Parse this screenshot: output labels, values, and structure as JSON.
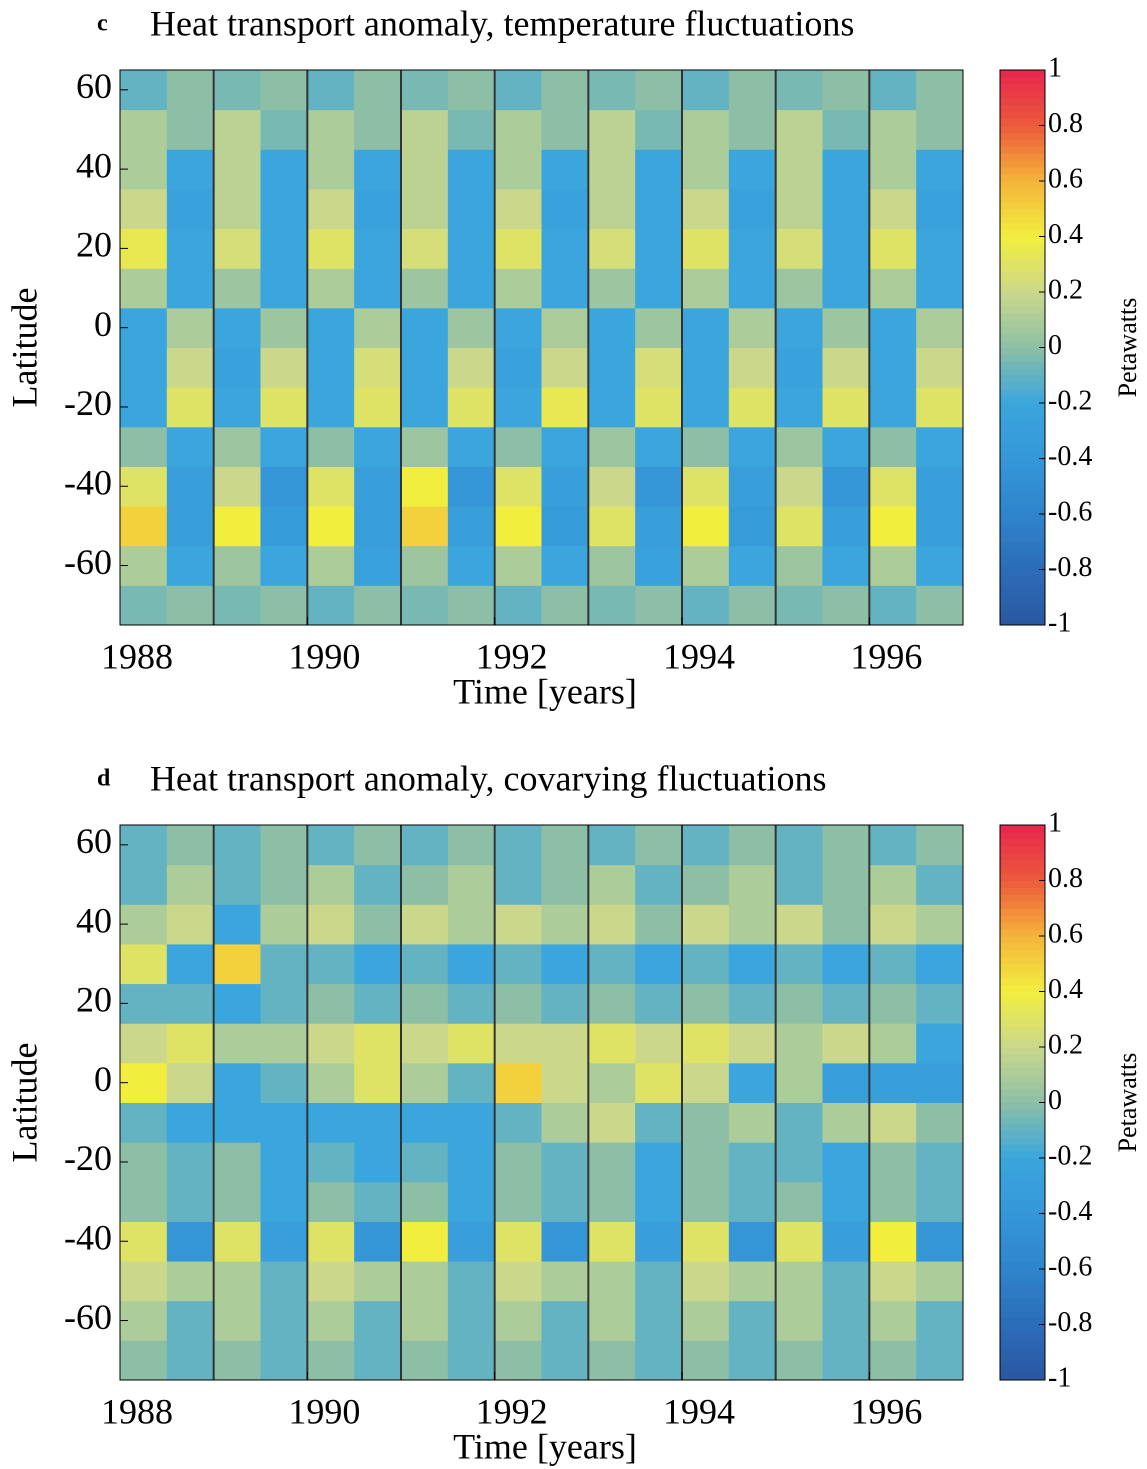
{
  "chart_data": [
    {
      "type": "heatmap",
      "panel_label": "c",
      "title": "Heat transport anomaly, temperature fluctuations",
      "xlabel": "Time [years]",
      "ylabel": "Latitude",
      "colorbar_label": "Petawatts",
      "xlim": [
        1988,
        1997
      ],
      "ylim": [
        -75,
        65
      ],
      "xticks": [
        1988,
        1990,
        1992,
        1994,
        1996
      ],
      "yticks": [
        -60,
        -40,
        -20,
        0,
        20,
        40,
        60
      ],
      "vlines": [
        1989,
        1990,
        1991,
        1992,
        1993,
        1994,
        1995,
        1996
      ],
      "clim": [
        -1,
        1
      ],
      "cticks": [
        -1,
        -0.8,
        -0.6,
        -0.4,
        -0.2,
        0,
        0.2,
        0.4,
        0.6,
        0.8,
        1
      ],
      "colormap": [
        "#2b57a0",
        "#2c6cb8",
        "#2f84cc",
        "#3597d8",
        "#3aa6dd",
        "#8cbfa6",
        "#cbd88c",
        "#f2ee3e",
        "#f4b43a",
        "#ec5a3c",
        "#e8264e"
      ],
      "xbins": [
        1988,
        1988.5,
        1989,
        1989.5,
        1990,
        1990.5,
        1991,
        1991.5,
        1992,
        1992.5,
        1993,
        1993.5,
        1994,
        1994.5,
        1995,
        1995.5,
        1996,
        1996.5,
        1997
      ],
      "ybins": [
        -75,
        -65,
        -55,
        -45,
        -35,
        -25,
        -15,
        -5,
        5,
        15,
        25,
        35,
        45,
        55,
        65
      ],
      "z": [
        [
          -0.05,
          0,
          -0.05,
          0,
          -0.1,
          0,
          -0.05,
          0,
          -0.1,
          0,
          -0.05,
          0,
          -0.1,
          0,
          -0.05,
          0,
          -0.1,
          0
        ],
        [
          0.1,
          -0.2,
          0.05,
          -0.2,
          0.1,
          -0.25,
          0.05,
          -0.2,
          0.1,
          -0.2,
          0.05,
          -0.25,
          0.1,
          -0.2,
          0.05,
          -0.2,
          0.1,
          -0.2
        ],
        [
          0.5,
          -0.3,
          0.4,
          -0.35,
          0.4,
          -0.3,
          0.5,
          -0.3,
          0.4,
          -0.35,
          0.3,
          -0.3,
          0.4,
          -0.35,
          0.3,
          -0.3,
          0.4,
          -0.3
        ],
        [
          0.3,
          -0.3,
          0.2,
          -0.4,
          0.3,
          -0.3,
          0.4,
          -0.4,
          0.3,
          -0.3,
          0.2,
          -0.4,
          0.3,
          -0.3,
          0.2,
          -0.4,
          0.3,
          -0.3
        ],
        [
          0,
          -0.2,
          0.05,
          -0.2,
          0,
          -0.2,
          0.05,
          -0.2,
          0,
          -0.2,
          0.05,
          -0.2,
          0,
          -0.2,
          0.05,
          -0.2,
          0,
          -0.2
        ],
        [
          -0.2,
          0.3,
          -0.2,
          0.3,
          -0.2,
          0.3,
          -0.2,
          0.3,
          -0.2,
          0.35,
          -0.2,
          0.3,
          -0.2,
          0.3,
          -0.2,
          0.3,
          -0.2,
          0.3
        ],
        [
          -0.2,
          0.2,
          -0.25,
          0.2,
          -0.2,
          0.25,
          -0.2,
          0.2,
          -0.25,
          0.2,
          -0.2,
          0.25,
          -0.2,
          0.2,
          -0.25,
          0.2,
          -0.2,
          0.2
        ],
        [
          -0.2,
          0.1,
          -0.2,
          0.05,
          -0.2,
          0.1,
          -0.2,
          0.05,
          -0.2,
          0.1,
          -0.2,
          0.05,
          -0.2,
          0.1,
          -0.2,
          0.05,
          -0.2,
          0.1
        ],
        [
          0.1,
          -0.2,
          0.05,
          -0.2,
          0.1,
          -0.2,
          0.05,
          -0.2,
          0.1,
          -0.2,
          0.05,
          -0.2,
          0.1,
          -0.2,
          0.05,
          -0.2,
          0.1,
          -0.2
        ],
        [
          0.35,
          -0.2,
          0.25,
          -0.2,
          0.3,
          -0.2,
          0.25,
          -0.2,
          0.3,
          -0.2,
          0.25,
          -0.2,
          0.3,
          -0.2,
          0.25,
          -0.2,
          0.3,
          -0.2
        ],
        [
          0.2,
          -0.25,
          0.15,
          -0.2,
          0.2,
          -0.25,
          0.15,
          -0.2,
          0.2,
          -0.25,
          0.15,
          -0.2,
          0.2,
          -0.25,
          0.15,
          -0.2,
          0.2,
          -0.25
        ],
        [
          0.1,
          -0.2,
          0.15,
          -0.2,
          0.1,
          -0.2,
          0.15,
          -0.2,
          0.1,
          -0.2,
          0.15,
          -0.2,
          0.1,
          -0.2,
          0.15,
          -0.2,
          0.1,
          -0.2
        ],
        [
          0.1,
          0,
          0.15,
          -0.05,
          0.1,
          0,
          0.15,
          -0.05,
          0.1,
          0,
          0.15,
          -0.05,
          0.1,
          0,
          0.15,
          -0.05,
          0.1,
          0
        ],
        [
          -0.1,
          0,
          -0.05,
          0,
          -0.1,
          0,
          -0.05,
          0,
          -0.1,
          0,
          -0.05,
          0,
          -0.1,
          0,
          -0.05,
          0,
          -0.1,
          0
        ]
      ]
    },
    {
      "type": "heatmap",
      "panel_label": "d",
      "title": "Heat transport anomaly, covarying fluctuations",
      "xlabel": "Time [years]",
      "ylabel": "Latitude",
      "colorbar_label": "Petawatts",
      "xlim": [
        1988,
        1997
      ],
      "ylim": [
        -75,
        65
      ],
      "xticks": [
        1988,
        1990,
        1992,
        1994,
        1996
      ],
      "yticks": [
        -60,
        -40,
        -20,
        0,
        20,
        40,
        60
      ],
      "vlines": [
        1989,
        1990,
        1991,
        1992,
        1993,
        1994,
        1995,
        1996
      ],
      "clim": [
        -1,
        1
      ],
      "cticks": [
        -1,
        -0.8,
        -0.6,
        -0.4,
        -0.2,
        0,
        0.2,
        0.4,
        0.6,
        0.8,
        1
      ],
      "colormap": [
        "#2b57a0",
        "#2c6cb8",
        "#2f84cc",
        "#3597d8",
        "#3aa6dd",
        "#8cbfa6",
        "#cbd88c",
        "#f2ee3e",
        "#f4b43a",
        "#ec5a3c",
        "#e8264e"
      ],
      "xbins": [
        1988,
        1988.5,
        1989,
        1989.5,
        1990,
        1990.5,
        1991,
        1991.5,
        1992,
        1992.5,
        1993,
        1993.5,
        1994,
        1994.5,
        1995,
        1995.5,
        1996,
        1996.5,
        1997
      ],
      "ybins": [
        -75,
        -65,
        -55,
        -45,
        -35,
        -25,
        -15,
        -5,
        5,
        15,
        25,
        35,
        45,
        55,
        65
      ],
      "z": [
        [
          0,
          -0.1,
          0,
          -0.1,
          0,
          -0.1,
          0,
          -0.1,
          0,
          -0.1,
          0,
          -0.1,
          0,
          -0.1,
          0,
          -0.1,
          0,
          -0.1
        ],
        [
          0.1,
          -0.1,
          0.1,
          -0.1,
          0.1,
          -0.1,
          0.1,
          -0.1,
          0.1,
          -0.1,
          0.1,
          -0.1,
          0.1,
          -0.1,
          0.1,
          -0.1,
          0.1,
          -0.1
        ],
        [
          0.2,
          0.1,
          0.1,
          -0.1,
          0.2,
          0.1,
          0.1,
          -0.1,
          0.2,
          0.1,
          0.1,
          -0.1,
          0.2,
          0.1,
          0.1,
          -0.1,
          0.2,
          0.1
        ],
        [
          0.3,
          -0.4,
          0.3,
          -0.3,
          0.3,
          -0.4,
          0.4,
          -0.3,
          0.3,
          -0.4,
          0.3,
          -0.3,
          0.3,
          -0.4,
          0.3,
          -0.3,
          0.4,
          -0.4
        ],
        [
          0,
          -0.1,
          0,
          -0.2,
          0,
          -0.1,
          0,
          -0.2,
          0,
          -0.1,
          0,
          -0.2,
          0,
          -0.1,
          0,
          -0.2,
          0,
          -0.1
        ],
        [
          0,
          -0.1,
          0,
          -0.2,
          -0.1,
          -0.2,
          -0.1,
          -0.2,
          0,
          -0.1,
          0,
          -0.2,
          0,
          -0.1,
          -0.1,
          -0.2,
          0,
          -0.1
        ],
        [
          -0.1,
          -0.2,
          -0.2,
          -0.2,
          -0.2,
          -0.2,
          -0.2,
          -0.2,
          -0.1,
          0.1,
          0.2,
          -0.1,
          0,
          0.1,
          -0.1,
          0.1,
          0.2,
          0
        ],
        [
          0.4,
          0.2,
          -0.2,
          -0.1,
          0.1,
          0.3,
          0.1,
          -0.1,
          0.5,
          0.2,
          0.1,
          0.3,
          0.2,
          -0.2,
          0.1,
          -0.3,
          -0.3,
          -0.3
        ],
        [
          0.2,
          0.3,
          0.1,
          0.1,
          0.2,
          0.3,
          0.2,
          0.3,
          0.2,
          0.2,
          0.3,
          0.2,
          0.3,
          0.2,
          0.1,
          0.2,
          0.1,
          -0.2
        ],
        [
          -0.1,
          -0.1,
          -0.2,
          -0.1,
          0,
          -0.1,
          0,
          -0.1,
          0,
          -0.1,
          0,
          -0.1,
          0,
          -0.1,
          0,
          -0.1,
          0,
          -0.1
        ],
        [
          0.3,
          -0.2,
          0.5,
          -0.1,
          -0.1,
          -0.2,
          -0.1,
          -0.2,
          -0.1,
          -0.2,
          -0.1,
          -0.2,
          -0.1,
          -0.2,
          -0.1,
          -0.2,
          -0.1,
          -0.2
        ],
        [
          0.1,
          0.2,
          -0.2,
          0.1,
          0.2,
          0,
          0.2,
          0.1,
          0.2,
          0.1,
          0.2,
          0,
          0.2,
          0.1,
          0.2,
          0,
          0.2,
          0.1
        ],
        [
          -0.1,
          0.1,
          -0.1,
          0,
          0.1,
          -0.1,
          0,
          0.1,
          -0.1,
          0,
          0.1,
          -0.1,
          0,
          0.1,
          -0.1,
          0,
          0.1,
          -0.1
        ],
        [
          -0.1,
          0,
          -0.1,
          0,
          -0.1,
          0,
          -0.1,
          0,
          -0.1,
          0,
          -0.1,
          0,
          -0.1,
          0,
          -0.1,
          0,
          -0.1,
          0
        ]
      ]
    }
  ]
}
